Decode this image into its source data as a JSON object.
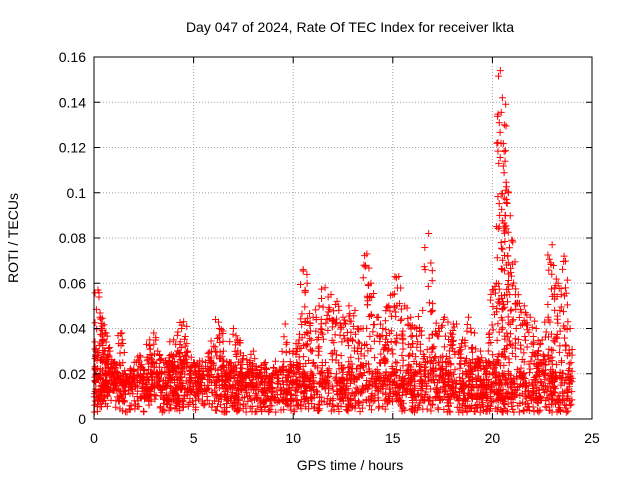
{
  "chart_data": {
    "type": "scatter",
    "title": "Day 047 of 2024, Rate Of TEC Index for receiver lkta",
    "xlabel": "GPS time / hours",
    "ylabel": "ROTI / TECUs",
    "xlim": [
      0,
      25
    ],
    "ylim": [
      0,
      0.16
    ],
    "xticks": [
      0,
      5,
      10,
      15,
      20,
      25
    ],
    "xtick_labels": [
      "0",
      "5",
      "10",
      "15",
      "20",
      "25"
    ],
    "yticks": [
      0,
      0.02,
      0.04,
      0.06,
      0.08,
      0.1,
      0.12,
      0.14,
      0.16
    ],
    "ytick_labels": [
      "0",
      "0.02",
      "0.04",
      "0.06",
      "0.08",
      "0.1",
      "0.12",
      "0.14",
      "0.16"
    ],
    "grid": true,
    "marker": "+",
    "color": "#ff0000",
    "series": [
      {
        "name": "ROTI",
        "x": [
          0.1,
          0.2,
          0.3,
          0.4,
          0.5,
          0.6,
          0.8,
          1.0,
          1.2,
          1.4,
          1.5,
          1.8,
          2.0,
          2.3,
          2.5,
          2.8,
          3.0,
          3.2,
          3.5,
          3.8,
          4.0,
          4.2,
          4.4,
          4.5,
          4.7,
          5.0,
          5.3,
          5.6,
          5.9,
          6.1,
          6.3,
          6.5,
          6.8,
          7.0,
          7.2,
          7.5,
          7.8,
          8.0,
          8.3,
          8.6,
          9.0,
          9.3,
          9.6,
          10.0,
          10.3,
          10.5,
          10.7,
          11.0,
          11.3,
          11.6,
          11.9,
          12.2,
          12.5,
          12.8,
          13.1,
          13.4,
          13.7,
          13.9,
          14.2,
          14.5,
          14.8,
          15.0,
          15.3,
          15.6,
          15.9,
          16.2,
          16.5,
          16.8,
          17.0,
          17.3,
          17.6,
          17.9,
          18.2,
          18.5,
          18.8,
          19.1,
          19.4,
          19.7,
          20.0,
          20.2,
          20.4,
          20.5,
          20.6,
          20.8,
          21.0,
          21.3,
          21.6,
          21.9,
          22.2,
          22.5,
          22.8,
          23.0,
          23.3,
          23.6,
          23.9
        ],
        "y": [
          0.03,
          0.057,
          0.045,
          0.04,
          0.035,
          0.038,
          0.03,
          0.025,
          0.02,
          0.038,
          0.02,
          0.018,
          0.022,
          0.028,
          0.02,
          0.035,
          0.038,
          0.03,
          0.025,
          0.028,
          0.035,
          0.03,
          0.04,
          0.043,
          0.03,
          0.025,
          0.02,
          0.025,
          0.03,
          0.044,
          0.04,
          0.03,
          0.025,
          0.04,
          0.035,
          0.028,
          0.025,
          0.03,
          0.02,
          0.025,
          0.02,
          0.022,
          0.042,
          0.03,
          0.035,
          0.066,
          0.06,
          0.045,
          0.05,
          0.058,
          0.055,
          0.052,
          0.045,
          0.05,
          0.048,
          0.04,
          0.073,
          0.06,
          0.045,
          0.04,
          0.05,
          0.055,
          0.063,
          0.05,
          0.045,
          0.04,
          0.048,
          0.082,
          0.048,
          0.04,
          0.045,
          0.038,
          0.042,
          0.035,
          0.045,
          0.038,
          0.03,
          0.025,
          0.057,
          0.06,
          0.154,
          0.142,
          0.13,
          0.1,
          0.079,
          0.055,
          0.05,
          0.045,
          0.04,
          0.035,
          0.045,
          0.077,
          0.06,
          0.072,
          0.04
        ],
        "baseline": {
          "floor": 0.003,
          "typical": 0.012,
          "spread": 0.009
        }
      }
    ]
  }
}
